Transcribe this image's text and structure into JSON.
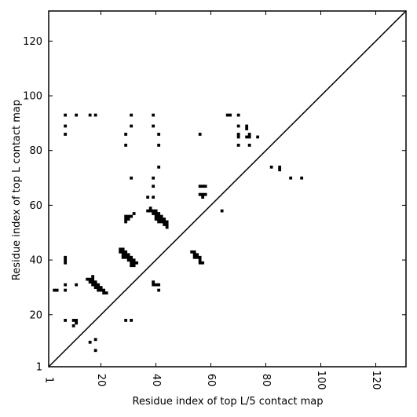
{
  "chart_data": {
    "type": "scatter",
    "xlabel": "Residue index of top L/5 contact map",
    "ylabel": "Residue index of top L contact map",
    "xlim": [
      1,
      131
    ],
    "ylim": [
      1,
      131
    ],
    "x_ticks": [
      1,
      20,
      40,
      60,
      80,
      100,
      120
    ],
    "y_ticks": [
      1,
      20,
      40,
      60,
      80,
      100,
      120
    ],
    "diagonal": true,
    "marker": "square",
    "color": "#000000",
    "upper_points": [
      [
        7,
        93
      ],
      [
        7,
        89
      ],
      [
        7,
        86
      ],
      [
        11,
        93
      ],
      [
        16,
        93
      ],
      [
        18,
        93
      ],
      [
        29,
        86
      ],
      [
        29,
        82
      ],
      [
        31,
        93
      ],
      [
        31,
        89
      ],
      [
        31,
        70
      ],
      [
        39,
        93
      ],
      [
        39,
        89
      ],
      [
        39,
        70
      ],
      [
        39,
        67
      ],
      [
        39,
        63
      ],
      [
        41,
        86
      ],
      [
        41,
        82
      ],
      [
        41,
        74
      ],
      [
        37,
        63
      ],
      [
        37,
        58
      ],
      [
        38,
        59
      ],
      [
        29,
        55
      ],
      [
        29,
        56
      ],
      [
        29,
        54
      ],
      [
        30,
        55
      ],
      [
        30,
        56
      ],
      [
        31,
        56
      ],
      [
        32,
        57
      ],
      [
        39,
        58
      ],
      [
        40,
        58
      ],
      [
        40,
        57
      ],
      [
        41,
        57
      ],
      [
        41,
        56
      ],
      [
        42,
        56
      ],
      [
        42,
        55
      ],
      [
        43,
        55
      ],
      [
        43,
        54
      ],
      [
        44,
        54
      ],
      [
        44,
        53
      ],
      [
        44,
        52
      ],
      [
        39,
        57
      ],
      [
        40,
        56
      ],
      [
        41,
        55
      ],
      [
        42,
        54
      ],
      [
        43,
        53
      ],
      [
        40,
        55
      ],
      [
        41,
        54
      ],
      [
        38,
        58
      ],
      [
        56,
        86
      ],
      [
        56,
        67
      ],
      [
        57,
        67
      ],
      [
        58,
        67
      ],
      [
        56,
        64
      ],
      [
        57,
        64
      ],
      [
        58,
        64
      ],
      [
        57,
        63
      ],
      [
        64,
        58
      ],
      [
        66,
        93
      ],
      [
        67,
        93
      ],
      [
        70,
        93
      ],
      [
        70,
        89
      ],
      [
        70,
        86
      ],
      [
        70,
        85
      ],
      [
        70,
        82
      ],
      [
        73,
        89
      ],
      [
        73,
        88
      ],
      [
        73,
        85
      ],
      [
        74,
        85
      ],
      [
        74,
        86
      ],
      [
        74,
        82
      ],
      [
        77,
        85
      ],
      [
        82,
        74
      ],
      [
        85,
        74
      ],
      [
        85,
        73
      ],
      [
        89,
        70
      ],
      [
        93,
        70
      ]
    ],
    "lower_points": [
      [
        3,
        29
      ],
      [
        4,
        29
      ],
      [
        7,
        41
      ],
      [
        7,
        40
      ],
      [
        7,
        39
      ],
      [
        7,
        31
      ],
      [
        7,
        29
      ],
      [
        7,
        18
      ],
      [
        11,
        31
      ],
      [
        10,
        16
      ],
      [
        10,
        18
      ],
      [
        11,
        17
      ],
      [
        11,
        18
      ],
      [
        16,
        10
      ],
      [
        18,
        11
      ],
      [
        18,
        7
      ],
      [
        15,
        33
      ],
      [
        16,
        33
      ],
      [
        16,
        32
      ],
      [
        17,
        33
      ],
      [
        17,
        32
      ],
      [
        17,
        31
      ],
      [
        17,
        34
      ],
      [
        18,
        32
      ],
      [
        18,
        31
      ],
      [
        18,
        30
      ],
      [
        19,
        31
      ],
      [
        19,
        30
      ],
      [
        19,
        29
      ],
      [
        20,
        30
      ],
      [
        20,
        29
      ],
      [
        21,
        29
      ],
      [
        21,
        28
      ],
      [
        22,
        28
      ],
      [
        27,
        44
      ],
      [
        27,
        43
      ],
      [
        28,
        44
      ],
      [
        28,
        43
      ],
      [
        28,
        42
      ],
      [
        28,
        41
      ],
      [
        29,
        43
      ],
      [
        29,
        42
      ],
      [
        29,
        41
      ],
      [
        30,
        42
      ],
      [
        30,
        41
      ],
      [
        30,
        40
      ],
      [
        31,
        41
      ],
      [
        31,
        40
      ],
      [
        31,
        39
      ],
      [
        32,
        40
      ],
      [
        32,
        39
      ],
      [
        32,
        38
      ],
      [
        33,
        39
      ],
      [
        31,
        38
      ],
      [
        29,
        18
      ],
      [
        31,
        18
      ],
      [
        39,
        32
      ],
      [
        39,
        31
      ],
      [
        40,
        31
      ],
      [
        41,
        31
      ],
      [
        41,
        29
      ],
      [
        53,
        43
      ],
      [
        54,
        43
      ],
      [
        54,
        42
      ],
      [
        54,
        41
      ],
      [
        55,
        42
      ],
      [
        55,
        41
      ],
      [
        56,
        41
      ],
      [
        56,
        40
      ],
      [
        56,
        39
      ],
      [
        57,
        39
      ]
    ]
  }
}
